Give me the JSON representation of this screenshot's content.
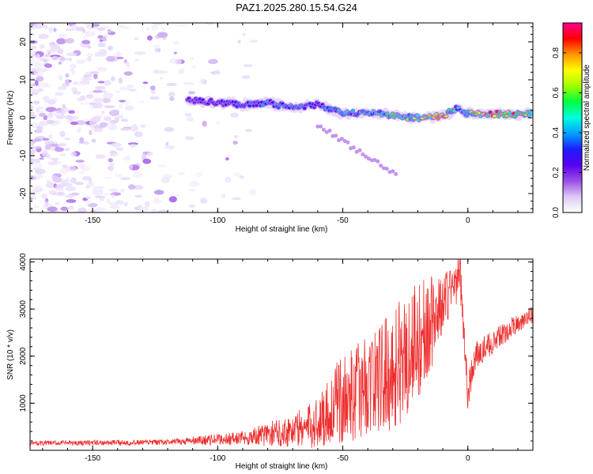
{
  "figure_title": "PAZ1.2025.280.15.54.G24",
  "chart_data": [
    {
      "type": "heatmap",
      "title": "PAZ1.2025.280.15.54.G24",
      "xlabel": "Height of straight line (km)",
      "ylabel": "Frequency (Hz)",
      "xlim": [
        -175,
        26
      ],
      "ylim": [
        -25,
        25
      ],
      "xticks": [
        -150,
        -100,
        -50,
        0
      ],
      "yticks": [
        -20,
        -10,
        0,
        10,
        20
      ],
      "colorbar": {
        "label": "Normalized spectral amplitude",
        "range": [
          0,
          0.95
        ],
        "ticks": [
          0.0,
          0.2,
          0.4,
          0.6,
          0.8
        ],
        "colormap": [
          "#ffffff",
          "#dcc8f5",
          "#9b4ee6",
          "#5a00f0",
          "#1c1cff",
          "#00a0ff",
          "#00ffe0",
          "#00ff40",
          "#a0ff00",
          "#ffff00",
          "#ff9600",
          "#ff0000",
          "#ff0090"
        ]
      },
      "ridge": [
        {
          "x": -110,
          "freq": 4.5,
          "amp": 0.3
        },
        {
          "x": -100,
          "freq": 4.0,
          "amp": 0.3
        },
        {
          "x": -90,
          "freq": 3.5,
          "amp": 0.35
        },
        {
          "x": -80,
          "freq": 4.0,
          "amp": 0.4
        },
        {
          "x": -70,
          "freq": 2.5,
          "amp": 0.4
        },
        {
          "x": -60,
          "freq": 3.5,
          "amp": 0.35
        },
        {
          "x": -50,
          "freq": 1.0,
          "amp": 0.45
        },
        {
          "x": -40,
          "freq": 1.5,
          "amp": 0.5
        },
        {
          "x": -30,
          "freq": 0.5,
          "amp": 0.55
        },
        {
          "x": -20,
          "freq": 0.0,
          "amp": 0.7
        },
        {
          "x": -10,
          "freq": 0.5,
          "amp": 0.8
        },
        {
          "x": -4,
          "freq": 2.5,
          "amp": 0.4
        },
        {
          "x": 0,
          "freq": 1.0,
          "amp": 0.55
        },
        {
          "x": 10,
          "freq": 1.0,
          "amp": 0.85
        },
        {
          "x": 20,
          "freq": 1.0,
          "amp": 0.8
        },
        {
          "x": 26,
          "freq": 1.0,
          "amp": 0.6
        }
      ]
    },
    {
      "type": "line",
      "xlabel": "Height of straight line (km)",
      "ylabel": "SNR (10 * v/v)",
      "xlim": [
        -175,
        26
      ],
      "ylim": [
        0,
        4060
      ],
      "xticks": [
        -150,
        -100,
        -50,
        0
      ],
      "yticks": [
        1000,
        2000,
        3000,
        4000
      ],
      "color": "#ee3030",
      "envelope": [
        {
          "x": -175,
          "mean": 150,
          "amp": 50
        },
        {
          "x": -120,
          "mean": 170,
          "amp": 60
        },
        {
          "x": -90,
          "mean": 260,
          "amp": 150
        },
        {
          "x": -75,
          "mean": 380,
          "amp": 300
        },
        {
          "x": -62,
          "mean": 520,
          "amp": 500
        },
        {
          "x": -52,
          "mean": 1000,
          "amp": 900
        },
        {
          "x": -40,
          "mean": 1400,
          "amp": 1100
        },
        {
          "x": -30,
          "mean": 1700,
          "amp": 1300
        },
        {
          "x": -22,
          "mean": 2200,
          "amp": 1500
        },
        {
          "x": -12,
          "mean": 2900,
          "amp": 800
        },
        {
          "x": -6,
          "mean": 3500,
          "amp": 500
        },
        {
          "x": -3,
          "mean": 3700,
          "amp": 500
        },
        {
          "x": 0,
          "mean": 1200,
          "amp": 400
        },
        {
          "x": 3,
          "mean": 2000,
          "amp": 300
        },
        {
          "x": 10,
          "mean": 2300,
          "amp": 250
        },
        {
          "x": 20,
          "mean": 2700,
          "amp": 200
        },
        {
          "x": 26,
          "mean": 2900,
          "amp": 200
        }
      ]
    }
  ]
}
